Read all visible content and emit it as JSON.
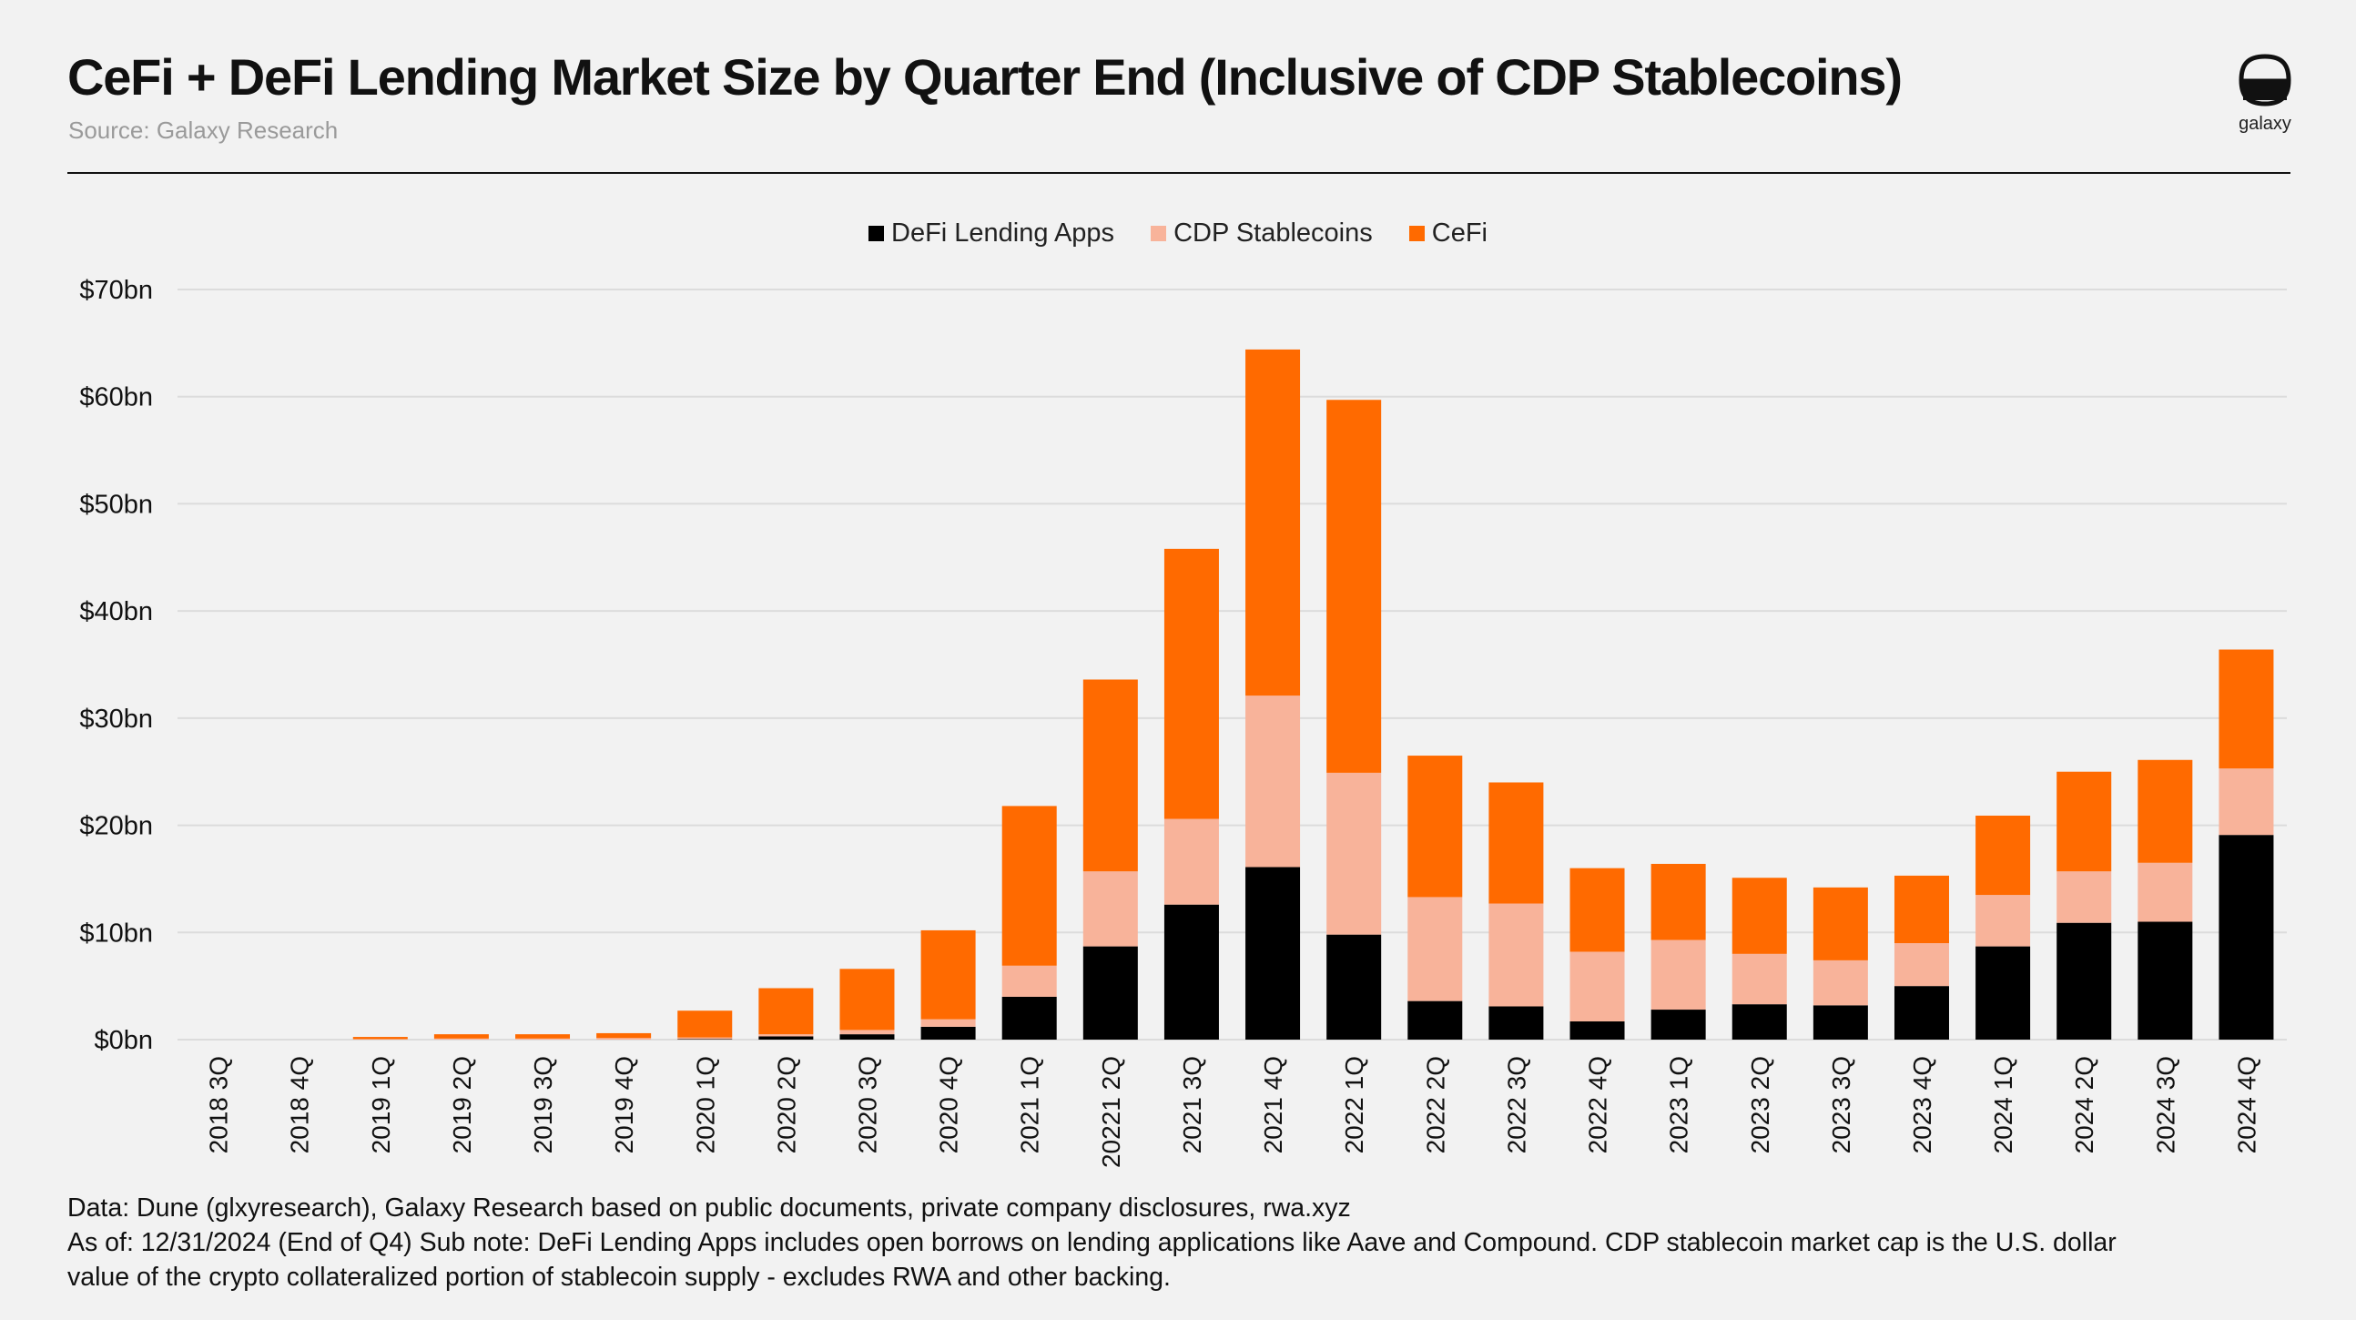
{
  "header": {
    "title": "CeFi + DeFi Lending Market Size by Quarter End (Inclusive of CDP Stablecoins)",
    "source": "Source: Galaxy Research",
    "logo_text": "galaxy"
  },
  "footer": {
    "line1": "Data: Dune (glxyresearch), Galaxy Research based on public documents, private company disclosures, rwa.xyz",
    "line2": "As of: 12/31/2024 (End of Q4)   Sub note: DeFi Lending Apps includes open borrows on lending applications like Aave and Compound. CDP stablecoin market cap is the U.S. dollar",
    "line3": "value of the crypto collateralized portion of stablecoin supply - excludes RWA and other backing."
  },
  "colors": {
    "defi": "#000000",
    "cdp": "#f8b39a",
    "cefi": "#ff6a00",
    "grid": "#dcdcdc",
    "axis_text": "#111111"
  },
  "chart_data": {
    "type": "bar",
    "stacked": true,
    "title": "CeFi + DeFi Lending Market Size by Quarter End (Inclusive of CDP Stablecoins)",
    "ylim": [
      0,
      70
    ],
    "y_ticks": [
      0,
      10,
      20,
      30,
      40,
      50,
      60,
      70
    ],
    "y_tick_labels": [
      "$0bn",
      "$10bn",
      "$20bn",
      "$30bn",
      "$40bn",
      "$50bn",
      "$60bn",
      "$70bn"
    ],
    "grid": true,
    "legend_position": "top-center",
    "categories": [
      "2018 3Q",
      "2018 4Q",
      "2019 1Q",
      "2019 2Q",
      "2019 3Q",
      "2019 4Q",
      "2020 1Q",
      "2020 2Q",
      "2020 3Q",
      "2020 4Q",
      "2021 1Q",
      "20221 2Q",
      "2021 3Q",
      "2021 4Q",
      "2022 1Q",
      "2022 2Q",
      "2022 3Q",
      "2022 4Q",
      "2023 1Q",
      "2023 2Q",
      "2023 3Q",
      "2023 4Q",
      "2024 1Q",
      "2024 2Q",
      "2024 3Q",
      "2024 4Q"
    ],
    "series": [
      {
        "name": "DeFi Lending Apps",
        "values": [
          0,
          0,
          0,
          0,
          0,
          0,
          0.05,
          0.3,
          0.5,
          1.2,
          4.0,
          8.7,
          12.6,
          16.1,
          9.8,
          3.6,
          3.1,
          1.7,
          2.8,
          3.3,
          3.2,
          5.0,
          8.7,
          10.9,
          11.0,
          19.1
        ]
      },
      {
        "name": "CDP Stablecoins",
        "values": [
          0,
          0,
          0.05,
          0.1,
          0.1,
          0.15,
          0.15,
          0.2,
          0.4,
          0.7,
          2.9,
          7.0,
          8.0,
          16.0,
          15.1,
          9.7,
          9.6,
          6.5,
          6.5,
          4.7,
          4.2,
          4.0,
          4.8,
          4.8,
          5.5,
          6.2
        ]
      },
      {
        "name": "CeFi",
        "values": [
          0,
          0,
          0.2,
          0.4,
          0.4,
          0.45,
          2.5,
          4.3,
          5.7,
          8.3,
          14.9,
          17.9,
          25.2,
          32.3,
          34.8,
          13.2,
          11.3,
          7.8,
          7.1,
          7.1,
          6.8,
          6.3,
          7.4,
          9.3,
          9.6,
          11.1
        ]
      }
    ]
  }
}
